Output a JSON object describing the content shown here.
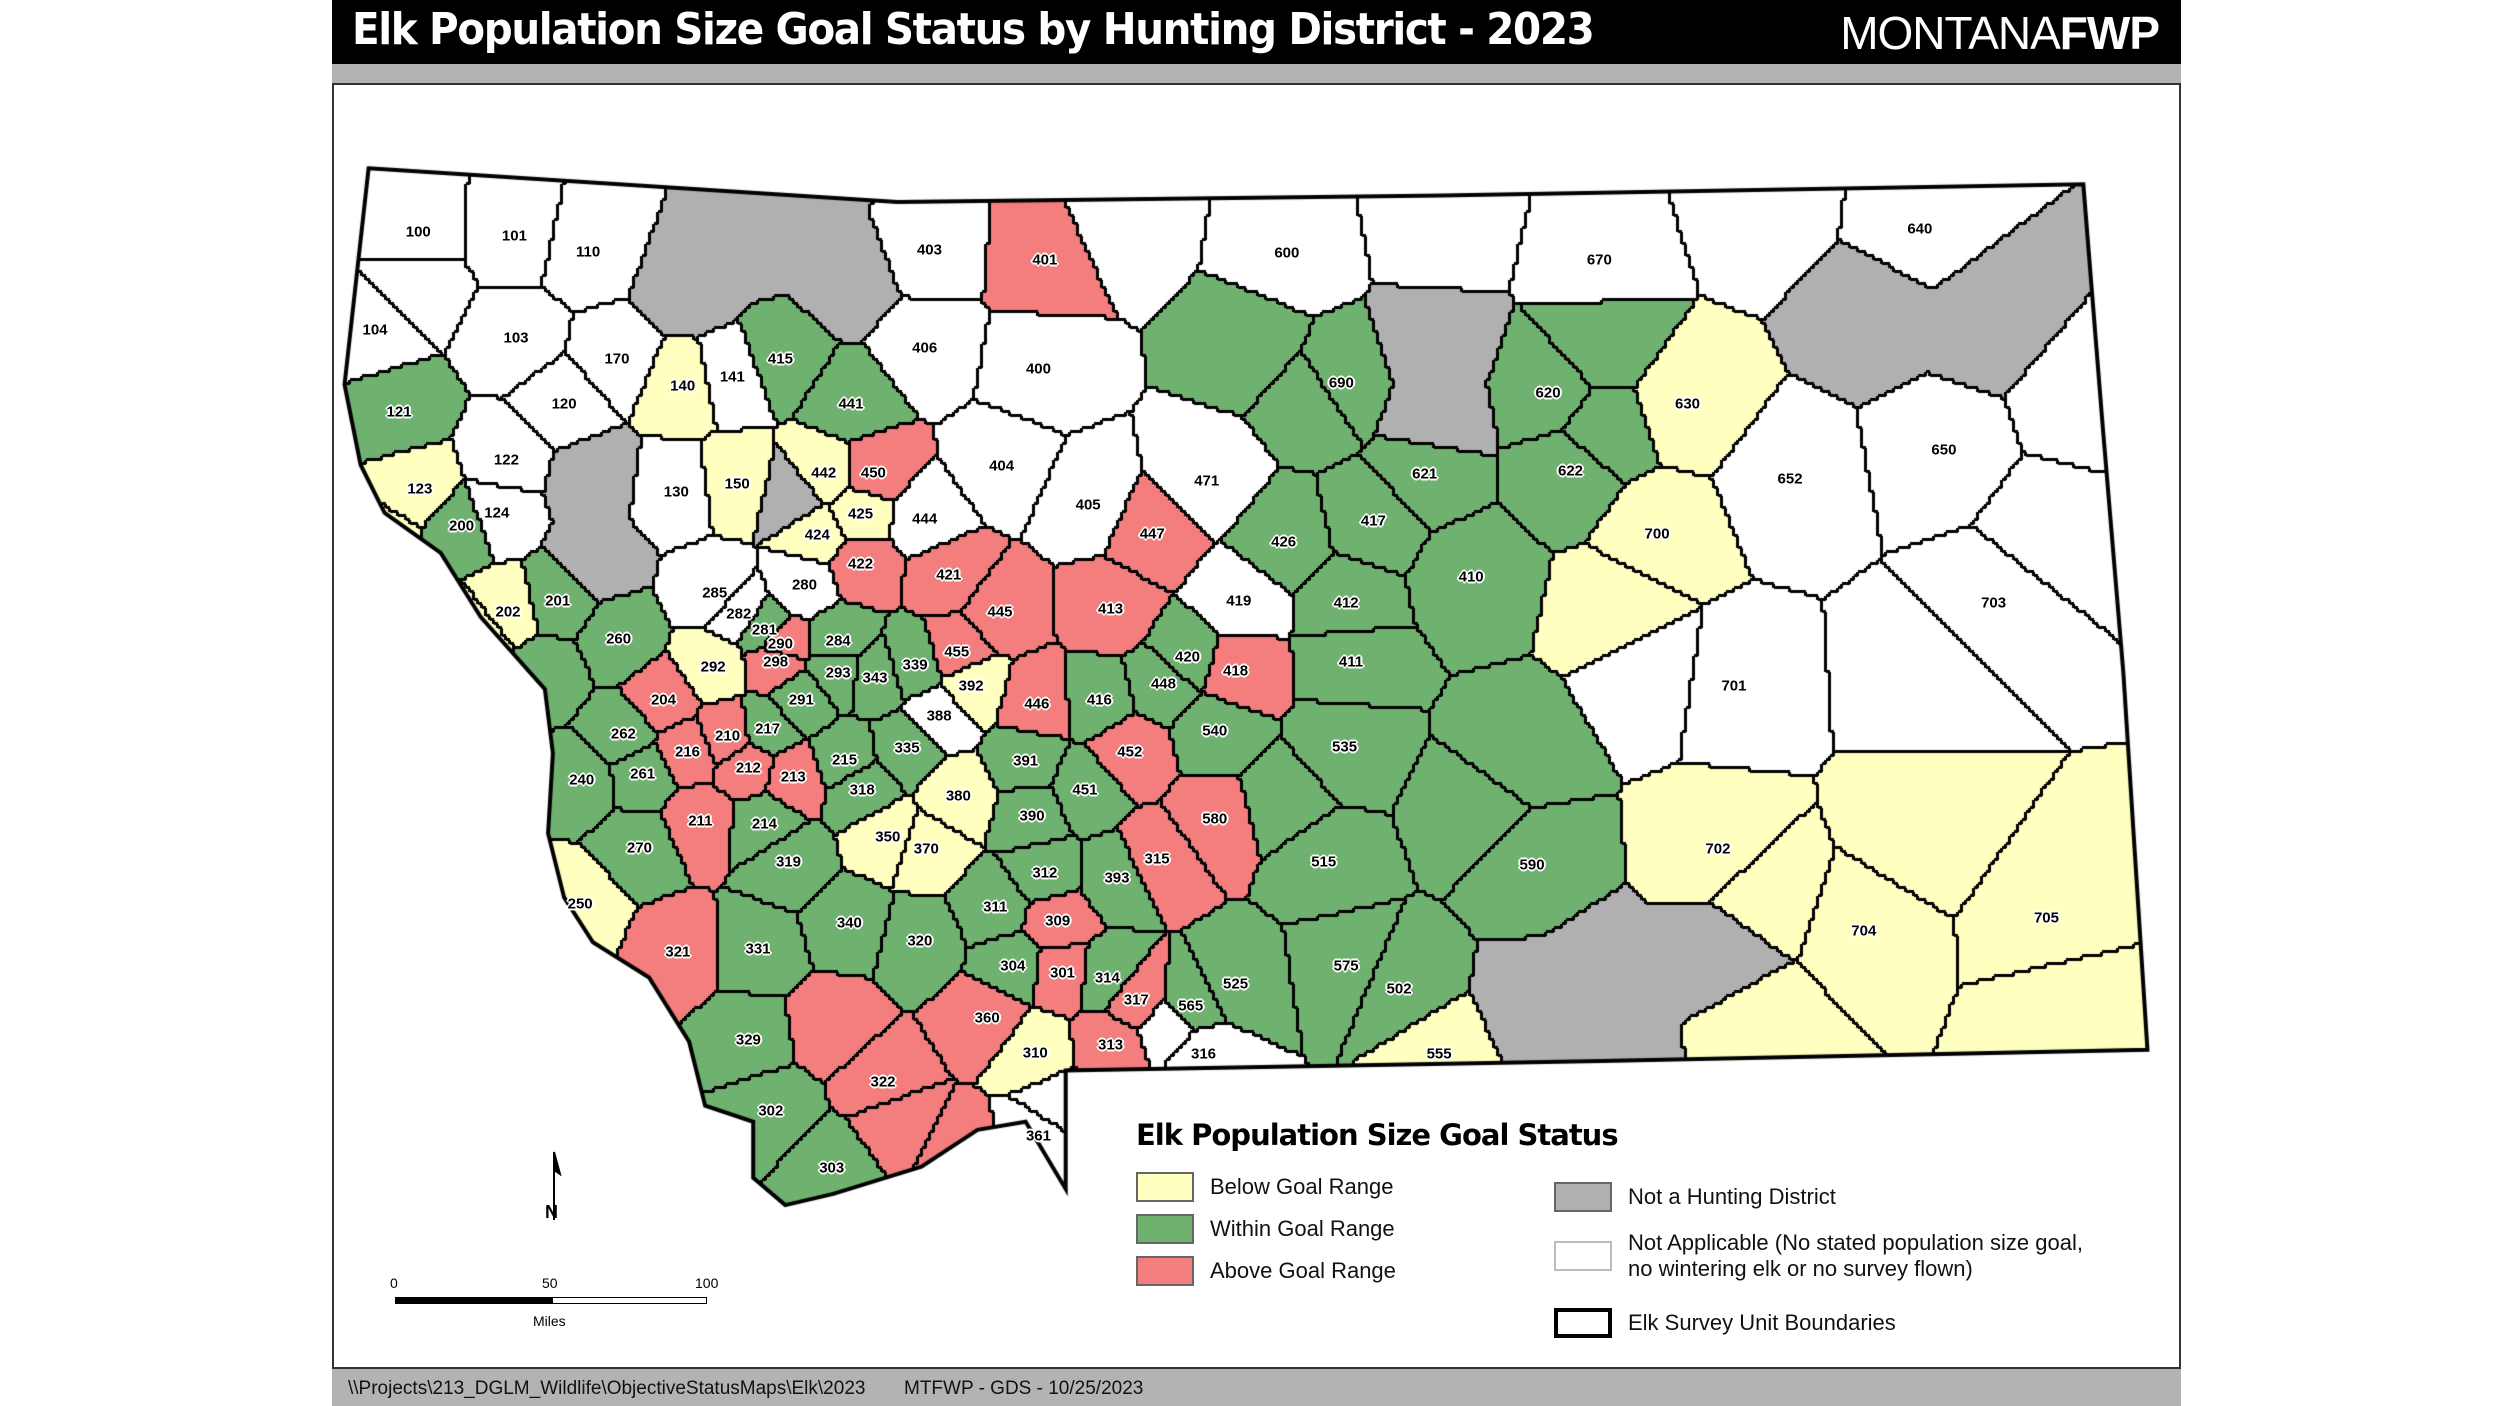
{
  "header": {
    "title": "Elk Population Size Goal Status by Hunting District - 2023",
    "logo_thin": "MONTANA",
    "logo_bold": "FWP"
  },
  "footer": {
    "path": "\\\\Projects\\213_DGLM_Wildlife\\ObjectiveStatusMaps\\Elk\\2023",
    "credit": "MTFWP - GDS - 10/25/2023"
  },
  "colors": {
    "below": "#ffffc0",
    "within": "#6fb26f",
    "above": "#f47d7d",
    "none": "#b0b0b0",
    "na": "#ffffff",
    "boundary": "#000000"
  },
  "legend": {
    "title": "Elk Population Size Goal Status",
    "items": [
      {
        "key": "below",
        "label": "Below Goal Range"
      },
      {
        "key": "within",
        "label": "Within Goal Range"
      },
      {
        "key": "above",
        "label": "Above Goal Range"
      },
      {
        "key": "none",
        "label": "Not a Hunting District"
      },
      {
        "key": "na",
        "label": "Not Applicable (No stated population size goal,",
        "label2": "no wintering elk or no survey flown)"
      },
      {
        "key": "boundary",
        "label": "Elk Survey Unit Boundaries"
      }
    ]
  },
  "scale": {
    "ticks": [
      "0",
      "50",
      "100"
    ],
    "unit": "Miles"
  },
  "north": "N",
  "districts": {
    "na": [
      "100",
      "101",
      "110",
      "104",
      "103",
      "170",
      "120",
      "122",
      "124",
      "130",
      "141",
      "285",
      "282",
      "280",
      "388",
      "403",
      "406",
      "400",
      "404",
      "405",
      "444",
      "471",
      "419",
      "600",
      "670",
      "640",
      "650",
      "652",
      "703",
      "701",
      "316",
      "361"
    ],
    "below": [
      "123",
      "202",
      "250",
      "292",
      "140",
      "150",
      "442",
      "424",
      "425",
      "350",
      "370",
      "380",
      "392",
      "310",
      "555",
      "630",
      "700",
      "702",
      "704",
      "705"
    ],
    "within": [
      "121",
      "200",
      "201",
      "260",
      "262",
      "240",
      "261",
      "270",
      "217",
      "291",
      "293",
      "343",
      "339",
      "281",
      "284",
      "215",
      "335",
      "318",
      "214",
      "319",
      "331",
      "329",
      "302",
      "303",
      "340",
      "320",
      "311",
      "312",
      "304",
      "393",
      "390",
      "391",
      "451",
      "416",
      "420",
      "448",
      "540",
      "411",
      "535",
      "515",
      "590",
      "575",
      "502",
      "525",
      "565",
      "314",
      "426",
      "417",
      "412",
      "410",
      "621",
      "622",
      "620",
      "690",
      "441",
      "415"
    ],
    "above": [
      "401",
      "450",
      "422",
      "421",
      "445",
      "413",
      "447",
      "418",
      "446",
      "452",
      "580",
      "315",
      "309",
      "301",
      "317",
      "313",
      "360",
      "322",
      "321",
      "204",
      "216",
      "210",
      "212",
      "213",
      "211",
      "290",
      "298",
      "455"
    ]
  }
}
